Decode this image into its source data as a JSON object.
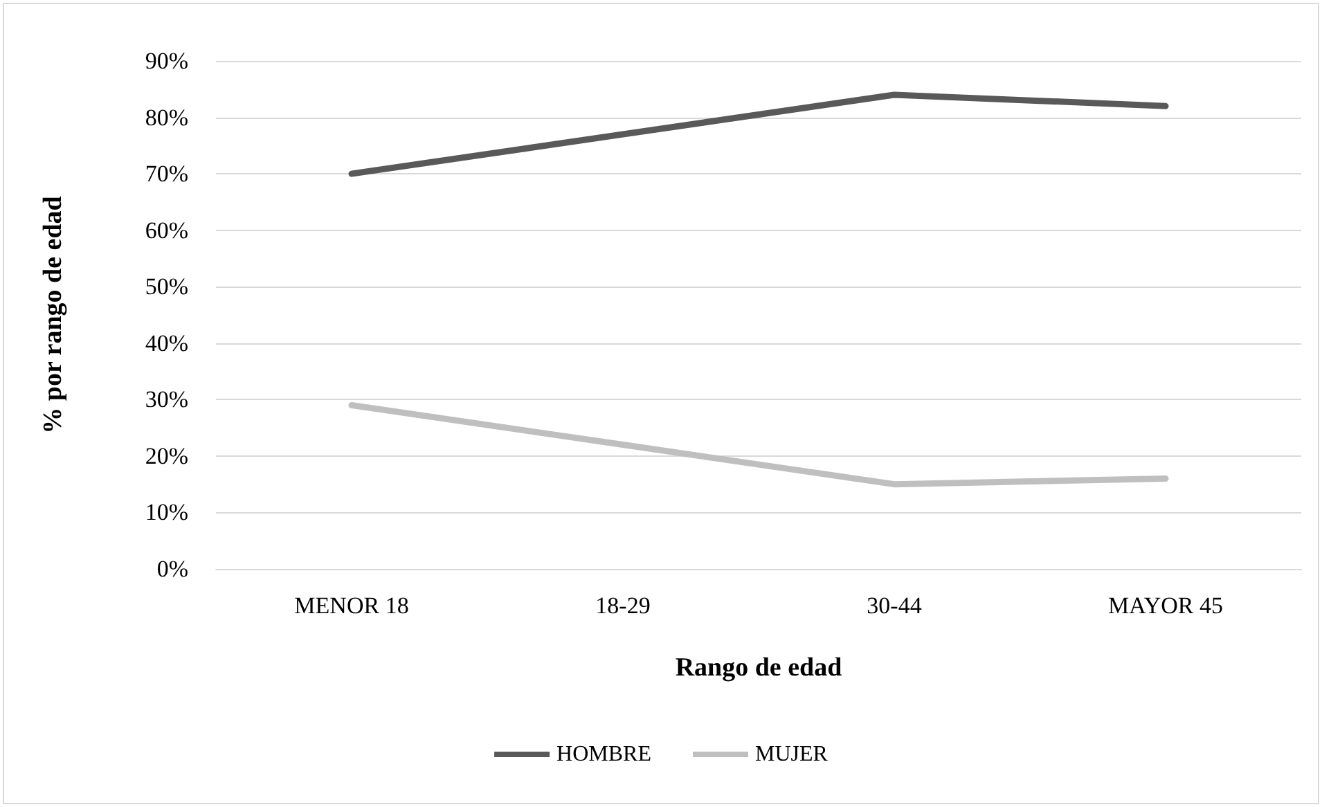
{
  "chart_data": {
    "type": "line",
    "xlabel": "Rango de edad",
    "ylabel": "% por rango de edad",
    "categories": [
      "MENOR 18",
      "18-29",
      "30-44",
      "MAYOR 45"
    ],
    "series": [
      {
        "name": "HOMBRE",
        "color": "#595959",
        "values": [
          70,
          77,
          84,
          82
        ]
      },
      {
        "name": "MUJER",
        "color": "#bfbfbf",
        "values": [
          29,
          22,
          15,
          16
        ]
      }
    ],
    "ylim": [
      0,
      90
    ],
    "yticks": [
      {
        "value": 0,
        "label": "0%"
      },
      {
        "value": 10,
        "label": "10%"
      },
      {
        "value": 20,
        "label": "20%"
      },
      {
        "value": 30,
        "label": "30%"
      },
      {
        "value": 40,
        "label": "40%"
      },
      {
        "value": 50,
        "label": "50%"
      },
      {
        "value": 60,
        "label": "60%"
      },
      {
        "value": 70,
        "label": "70%"
      },
      {
        "value": 80,
        "label": "80%"
      },
      {
        "value": 90,
        "label": "90%"
      }
    ],
    "grid": "y",
    "legend": "bottom",
    "marker": "none",
    "line_style": "solid"
  }
}
